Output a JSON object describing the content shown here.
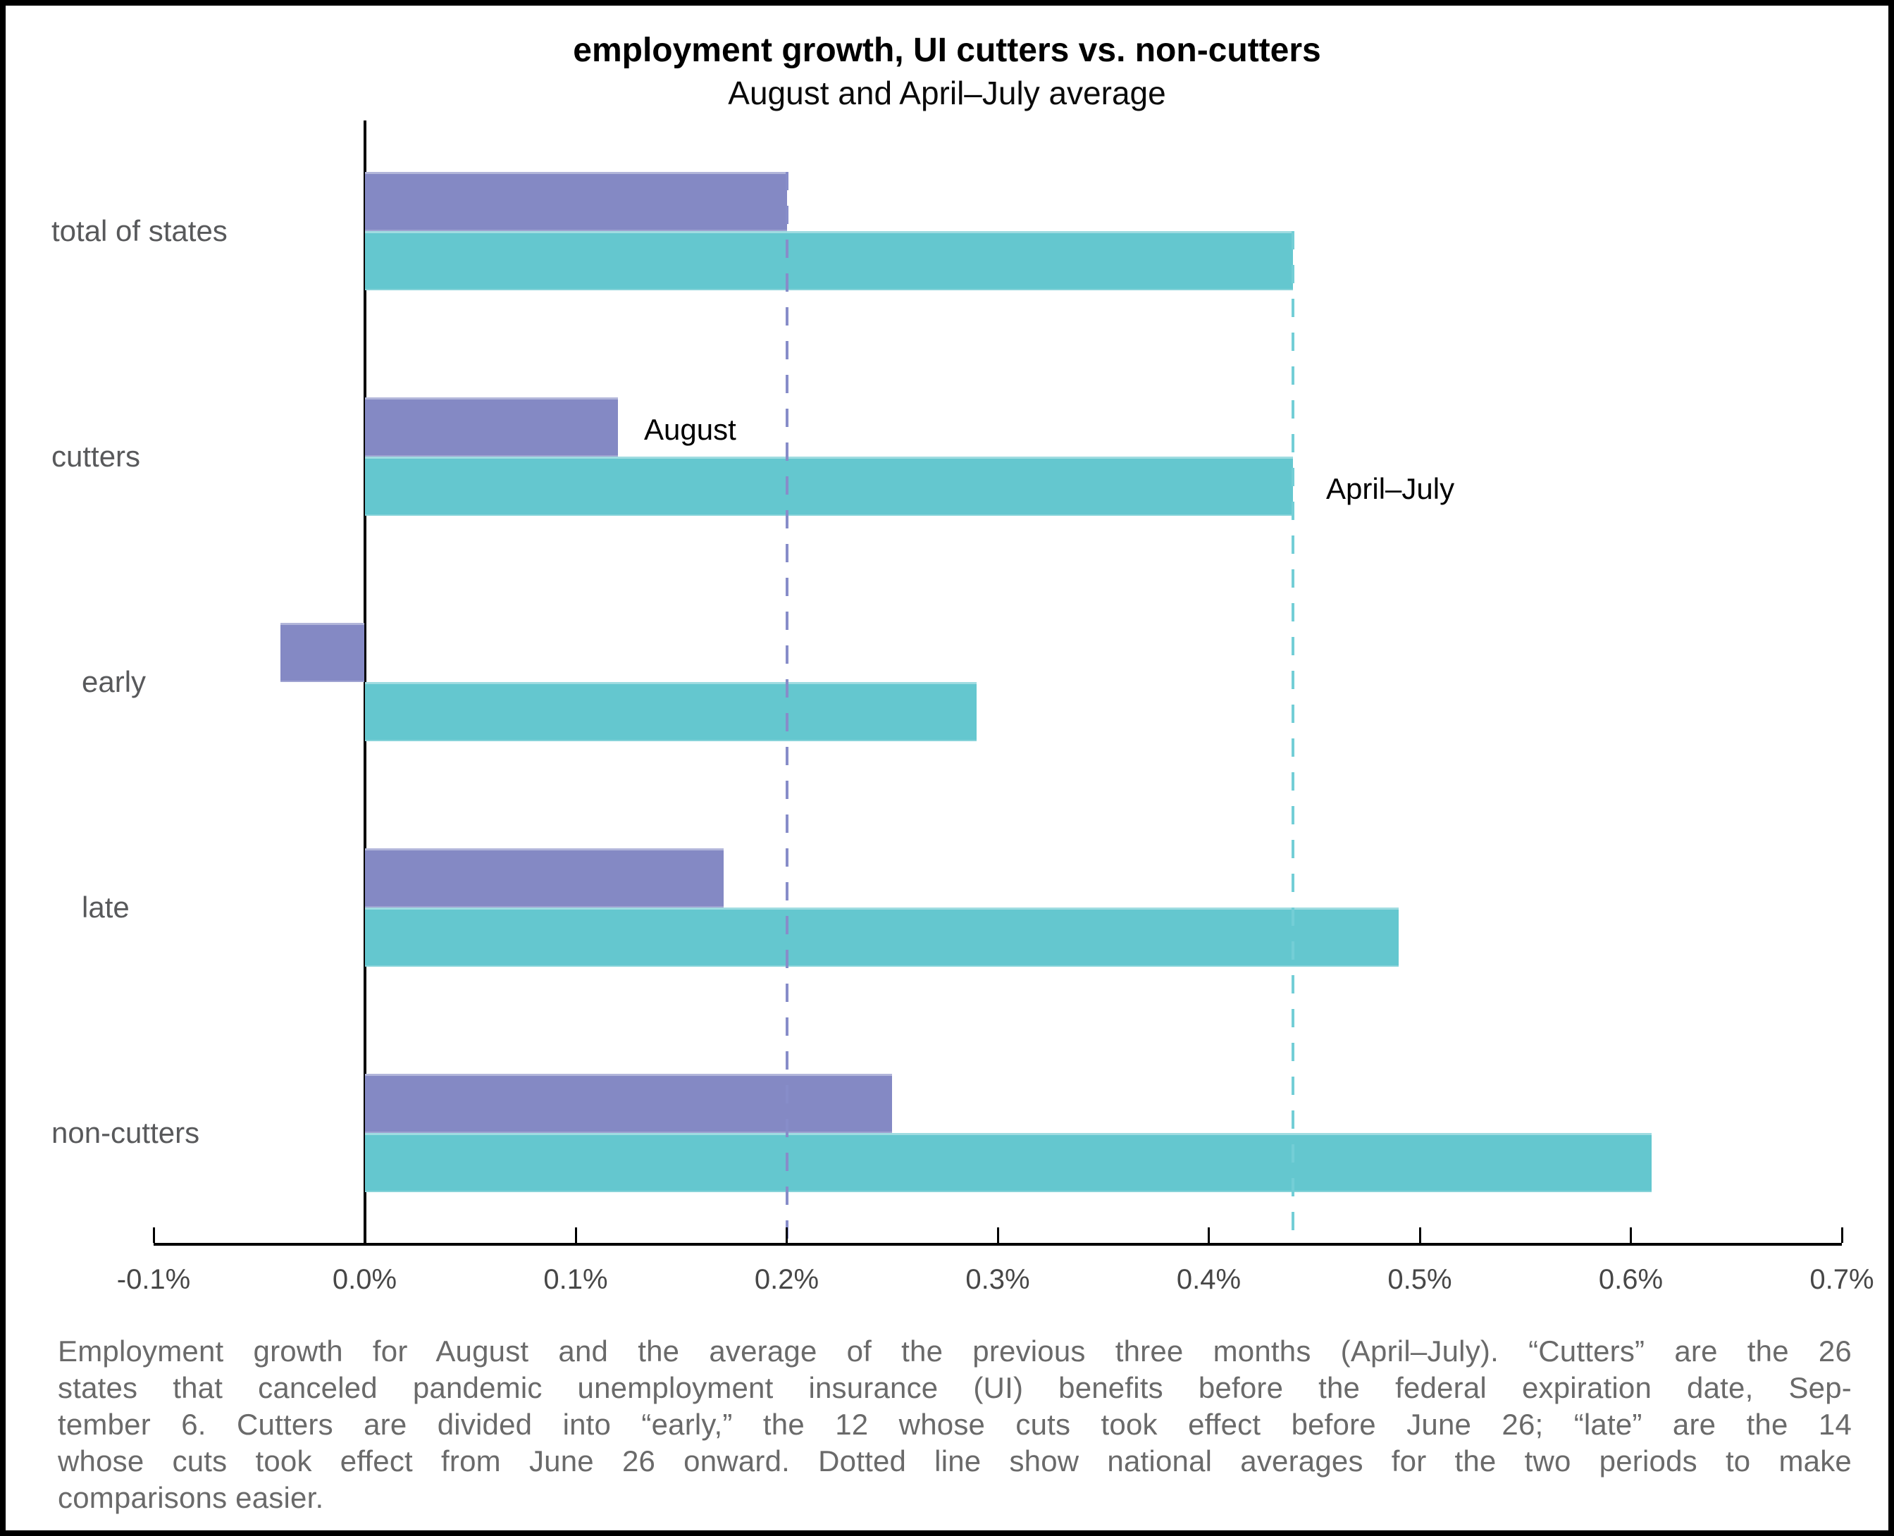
{
  "title": "employment growth, UI cutters vs. non-cutters",
  "subtitle": "August and April–July average",
  "series_labels": {
    "august": "August",
    "april_july": "April–July"
  },
  "chart_data": {
    "type": "bar",
    "orientation": "horizontal",
    "title": "employment growth, UI cutters vs. non-cutters",
    "subtitle": "August and April–July average",
    "categories": [
      "total of states",
      "cutters",
      "early",
      "late",
      "non-cutters"
    ],
    "indented_categories": [
      "early",
      "late"
    ],
    "series": [
      {
        "name": "August",
        "color": "#8489c4",
        "values_pct": [
          0.2,
          0.12,
          -0.04,
          0.17,
          0.25
        ]
      },
      {
        "name": "April–July",
        "color": "#64c7cf",
        "values_pct": [
          0.44,
          0.44,
          0.29,
          0.49,
          0.61
        ]
      }
    ],
    "x_ticks": [
      "-0.1%",
      "0.0%",
      "0.1%",
      "0.2%",
      "0.3%",
      "0.4%",
      "0.5%",
      "0.6%",
      "0.7%"
    ],
    "x_range_pct": [
      -0.1,
      0.7
    ],
    "grid": false,
    "legend_position": "inline-annotations",
    "reference_lines": [
      {
        "value_pct": 0.2,
        "color": "#878dc9",
        "style": "dashed",
        "meaning": "national August average"
      },
      {
        "value_pct": 0.44,
        "color": "#73ced6",
        "style": "dashed",
        "meaning": "national April–July average"
      }
    ]
  },
  "caption_lines": [
    "Employment growth for August and the average of the previous three months (April–July). “Cutters” are the 26",
    "states that canceled pandemic unemployment insurance (UI) benefits before the federal expiration date, Sep-",
    "tember 6. Cutters are divided into “early,” the 12 whose cuts took effect before June 26; “late” are the 14",
    "whose cuts took effect from June 26 onward. Dotted line show national averages for the two periods to make",
    "comparisons easier."
  ],
  "colors": {
    "august_bar": "#8489c4",
    "april_july_bar": "#64c7cf",
    "august_refline": "#878dc9",
    "april_july_refline": "#73ced6",
    "category_label": "#58595b",
    "tick_label": "#474747",
    "caption": "#6a6a6a",
    "frame_border": "#000000"
  }
}
